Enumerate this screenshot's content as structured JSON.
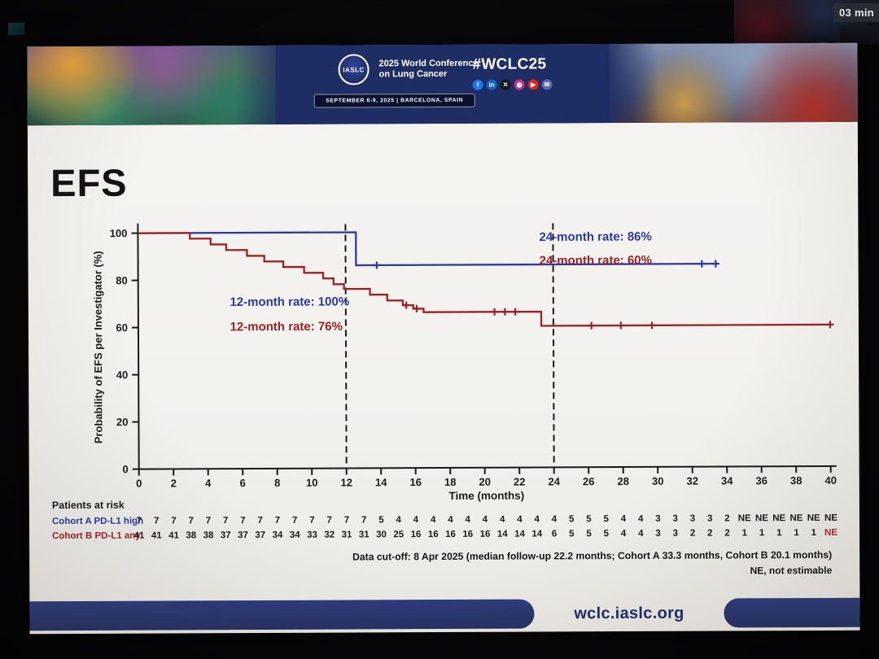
{
  "photo": {
    "timer": "03 min"
  },
  "banner": {
    "logo_text": "IASLC",
    "conf_line1": "2025 World Conference",
    "conf_line2": "on Lung Cancer",
    "hashtag": "#WCLC25",
    "date_strip": "SEPTEMBER 6-9, 2025  |  BARCELONA, SPAIN",
    "social": [
      {
        "name": "facebook-icon",
        "glyph": "f",
        "color": "#1877f2"
      },
      {
        "name": "linkedin-icon",
        "glyph": "in",
        "color": "#0a66c2"
      },
      {
        "name": "x-icon",
        "glyph": "✕",
        "color": "#15151a"
      },
      {
        "name": "instagram-icon",
        "glyph": "◉",
        "color": "#c13584"
      },
      {
        "name": "youtube-icon",
        "glyph": "▶",
        "color": "#e62117"
      },
      {
        "name": "email-icon",
        "glyph": "✉",
        "color": "#5a6aa8"
      }
    ]
  },
  "slide": {
    "title": "EFS",
    "footnote1": "Data cut-off: 8 Apr 2025 (median follow-up 22.2 months; Cohort A 33.3 months, Cohort B 20.1 months)",
    "footnote2": "NE, not estimable",
    "footer_url": "wclc.iaslc.org"
  },
  "chart_data": {
    "type": "line",
    "subtype": "kaplan-meier-step",
    "title": "EFS",
    "xlabel": "Time  (months)",
    "ylabel": "Probability of EFS per Investigator (%)",
    "xlim": [
      0,
      40
    ],
    "xticks": [
      0,
      2,
      4,
      6,
      8,
      10,
      12,
      14,
      16,
      18,
      20,
      22,
      24,
      26,
      28,
      30,
      32,
      34,
      36,
      38,
      40
    ],
    "ylim": [
      0,
      100
    ],
    "yticks": [
      0,
      20,
      40,
      60,
      80,
      100
    ],
    "grid": false,
    "legend_position": "none",
    "reference_lines": [
      {
        "x": 12,
        "style": "dashed",
        "color": "#1a1a1a"
      },
      {
        "x": 24,
        "style": "dashed",
        "color": "#1a1a1a"
      }
    ],
    "series": [
      {
        "name": "Cohort A PD-L1 high",
        "color": "#2b3a9b",
        "steps": [
          [
            0,
            100
          ],
          [
            12.6,
            100
          ],
          [
            12.6,
            86
          ],
          [
            33.5,
            86
          ]
        ],
        "censors": [
          [
            13.8,
            86
          ],
          [
            32.6,
            86
          ],
          [
            33.4,
            86
          ]
        ],
        "annotations": [
          {
            "text": "12-month rate: 100%",
            "x": 5.3,
            "y": 69
          },
          {
            "text": "24-month rate: 86%",
            "x": 23.2,
            "y": 96
          }
        ]
      },
      {
        "name": "Cohort B PD-L1 any",
        "color": "#9b2226",
        "steps": [
          [
            0,
            100
          ],
          [
            3,
            100
          ],
          [
            3,
            97.6
          ],
          [
            4.2,
            97.6
          ],
          [
            4.2,
            95.1
          ],
          [
            5.1,
            95.1
          ],
          [
            5.1,
            92.7
          ],
          [
            6.3,
            92.7
          ],
          [
            6.3,
            90.2
          ],
          [
            7.3,
            90.2
          ],
          [
            7.3,
            87.8
          ],
          [
            8.4,
            87.8
          ],
          [
            8.4,
            85.4
          ],
          [
            9.6,
            85.4
          ],
          [
            9.6,
            82.9
          ],
          [
            10.7,
            82.9
          ],
          [
            10.7,
            80.5
          ],
          [
            11.3,
            80.5
          ],
          [
            11.3,
            78
          ],
          [
            11.9,
            78
          ],
          [
            11.9,
            76
          ],
          [
            13.4,
            76
          ],
          [
            13.4,
            73.5
          ],
          [
            14.4,
            73.5
          ],
          [
            14.4,
            71
          ],
          [
            15.3,
            71
          ],
          [
            15.3,
            69
          ],
          [
            15.9,
            69
          ],
          [
            15.9,
            67.5
          ],
          [
            16.5,
            67.5
          ],
          [
            16.5,
            66
          ],
          [
            23.3,
            66
          ],
          [
            23.3,
            60
          ],
          [
            40,
            60
          ]
        ],
        "censors": [
          [
            15.5,
            69
          ],
          [
            16.1,
            67.5
          ],
          [
            20.6,
            66
          ],
          [
            21.2,
            66
          ],
          [
            21.8,
            66
          ],
          [
            26.2,
            60
          ],
          [
            27.9,
            60
          ],
          [
            29.7,
            60
          ],
          [
            40,
            60
          ]
        ],
        "annotations": [
          {
            "text": "12-month rate: 76%",
            "x": 5.3,
            "y": 58.5
          },
          {
            "text": "24-month rate: 60%",
            "x": 23.2,
            "y": 86
          }
        ]
      }
    ],
    "at_risk": {
      "heading": "Patients at risk",
      "months": [
        0,
        1,
        2,
        3,
        4,
        5,
        6,
        7,
        8,
        9,
        10,
        11,
        12,
        13,
        14,
        15,
        16,
        17,
        18,
        19,
        20,
        21,
        22,
        23,
        24,
        25,
        26,
        27,
        28,
        29,
        30,
        31,
        32,
        33,
        34,
        35,
        36,
        37,
        38,
        39,
        40
      ],
      "rows": [
        {
          "label": "Cohort A PD-L1 high",
          "color": "#2b3a9b",
          "ne_color": "#1a1a1a",
          "counts": [
            "7",
            "7",
            "7",
            "7",
            "7",
            "7",
            "7",
            "7",
            "7",
            "7",
            "7",
            "7",
            "7",
            "7",
            "5",
            "4",
            "4",
            "4",
            "4",
            "4",
            "4",
            "4",
            "4",
            "4",
            "4",
            "5",
            "5",
            "5",
            "4",
            "4",
            "3",
            "3",
            "3",
            "3",
            "2",
            "NE",
            "NE",
            "NE",
            "NE",
            "NE",
            "NE"
          ]
        },
        {
          "label": "Cohort B PD-L1 any",
          "color": "#9b2226",
          "ne_color": "#b02a26",
          "counts": [
            "41",
            "41",
            "41",
            "38",
            "38",
            "37",
            "37",
            "37",
            "34",
            "34",
            "33",
            "32",
            "31",
            "31",
            "30",
            "25",
            "16",
            "16",
            "16",
            "16",
            "16",
            "14",
            "14",
            "14",
            "6",
            "5",
            "5",
            "5",
            "4",
            "4",
            "3",
            "3",
            "2",
            "2",
            "2",
            "1",
            "1",
            "1",
            "1",
            "1",
            "NE"
          ]
        }
      ]
    }
  }
}
